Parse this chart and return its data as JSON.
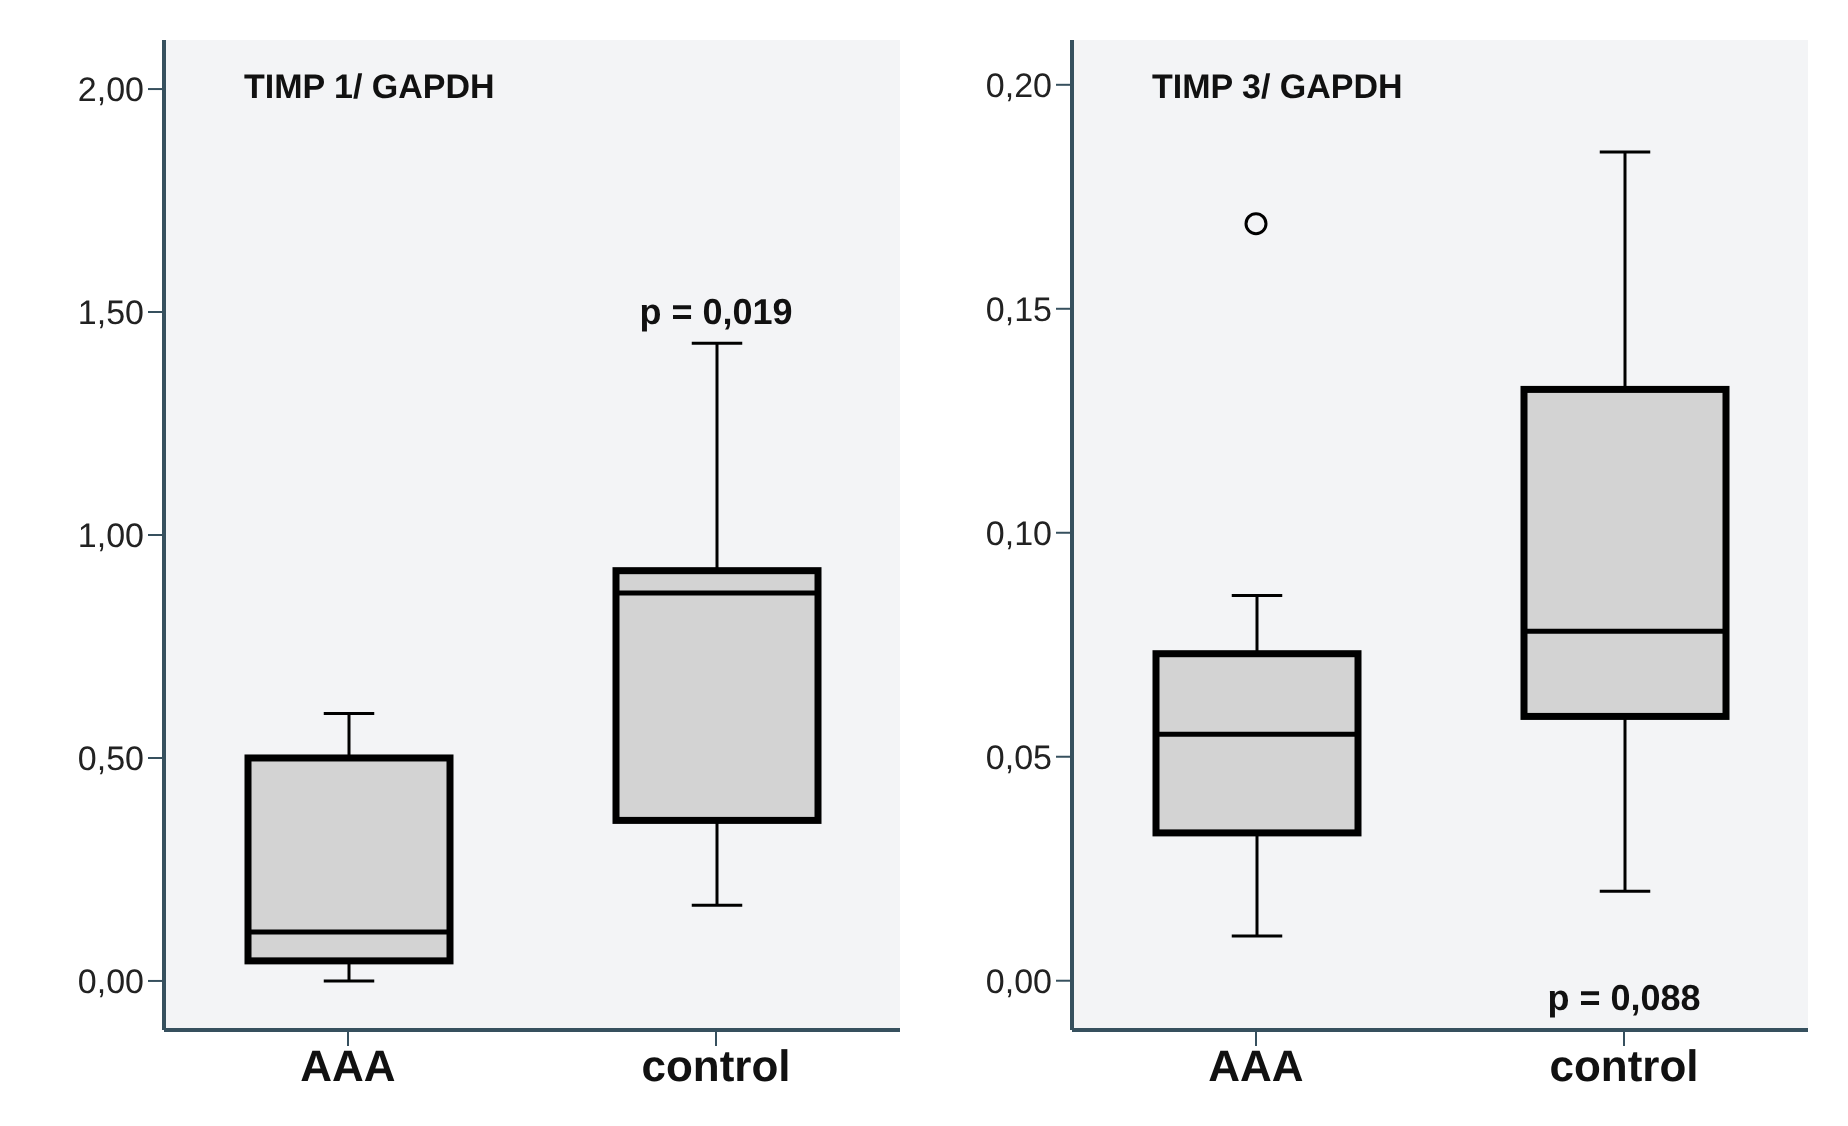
{
  "chart_data": [
    {
      "type": "box",
      "title": "TIMP 1/ GAPDH",
      "categories": [
        "AAA",
        "control"
      ],
      "boxes": [
        {
          "low": 0.0,
          "q1": 0.045,
          "median": 0.11,
          "q3": 0.5,
          "high": 0.6
        },
        {
          "low": 0.17,
          "q1": 0.36,
          "median": 0.87,
          "q3": 0.92,
          "high": 1.43
        }
      ],
      "color": "#d3d3d3",
      "ylim": [
        -0.11,
        2.11
      ],
      "yticks": [
        {
          "value": 0,
          "label": "0,00"
        },
        {
          "value": 0.5,
          "label": "0,50"
        },
        {
          "value": 1,
          "label": "1,00"
        },
        {
          "value": 1.5,
          "label": "1,50"
        },
        {
          "value": 2,
          "label": "2,00"
        }
      ],
      "annotations": [
        "p = 0,019"
      ],
      "grid": false,
      "legend": false
    },
    {
      "type": "box",
      "title": "TIMP 3/ GAPDH",
      "categories": [
        "AAA",
        "control"
      ],
      "boxes": [
        {
          "low": 0.01,
          "q1": 0.033,
          "median": 0.055,
          "q3": 0.073,
          "high": 0.086,
          "outliers": [
            0.169
          ]
        },
        {
          "low": 0.02,
          "q1": 0.059,
          "median": 0.078,
          "q3": 0.132,
          "high": 0.185
        }
      ],
      "color": "#d3d3d3",
      "ylim": [
        -0.011,
        0.21
      ],
      "yticks": [
        {
          "value": 0,
          "label": "0,00"
        },
        {
          "value": 0.05,
          "label": "0,05"
        },
        {
          "value": 0.1,
          "label": "0,10"
        },
        {
          "value": 0.15,
          "label": "0,15"
        },
        {
          "value": 0.2,
          "label": "0,20"
        }
      ],
      "annotations": [
        "p = 0,088"
      ],
      "grid": false,
      "legend": false
    }
  ]
}
